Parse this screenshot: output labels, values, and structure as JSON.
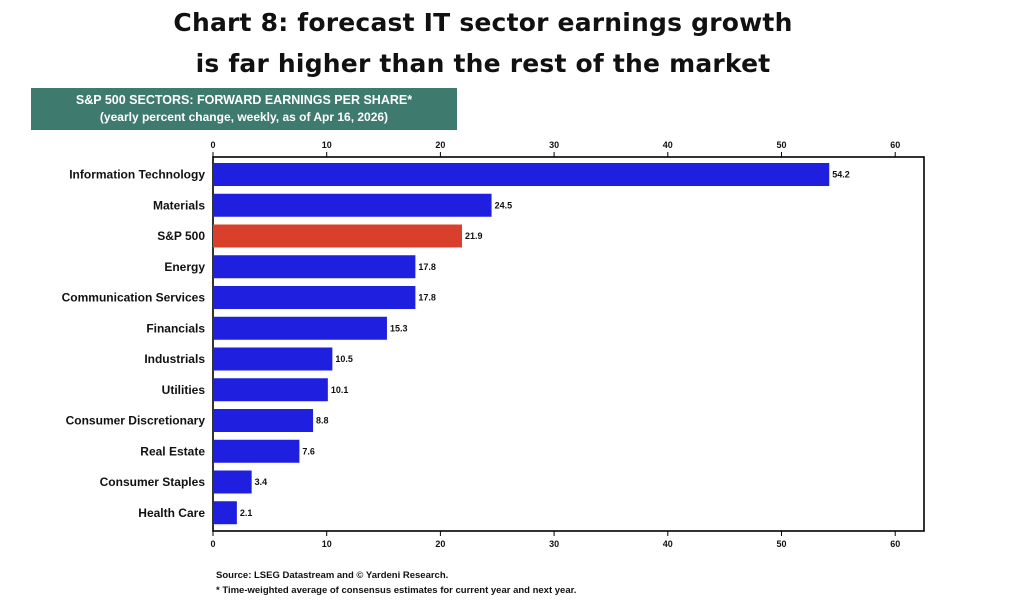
{
  "headline": {
    "line1": "Chart 8: forecast IT sector earnings growth",
    "line2": "is far higher than the rest of the market"
  },
  "header": {
    "title": "S&P 500 SECTORS: FORWARD EARNINGS PER SHARE*",
    "subtitle": "(yearly percent change, weekly, as of Apr 16, 2026)"
  },
  "footer": {
    "source": "Source: LSEG Datastream and © Yardeni Research.",
    "note": "* Time-weighted average of consensus estimates for current year and next year."
  },
  "colors": {
    "bar": "#1f1fe0",
    "highlight": "#d9402c",
    "header_bg": "#3f7a6e"
  },
  "chart_data": {
    "type": "bar",
    "orientation": "horizontal",
    "categories": [
      "Information Technology",
      "Materials",
      "S&P 500",
      "Energy",
      "Communication Services",
      "Financials",
      "Industrials",
      "Utilities",
      "Consumer Discretionary",
      "Real Estate",
      "Consumer Staples",
      "Health Care"
    ],
    "values": [
      54.2,
      24.5,
      21.9,
      17.8,
      17.8,
      15.3,
      10.5,
      10.1,
      8.8,
      7.6,
      3.4,
      2.1
    ],
    "value_labels": [
      "54.2",
      "24.5",
      "21.9",
      "17.8",
      "17.8",
      "15.3",
      "10.5",
      "10.1",
      "8.8",
      "7.6",
      "3.4",
      "2.1"
    ],
    "highlight_category": "S&P 500",
    "xlim": [
      0,
      62
    ],
    "xticks": [
      0,
      10,
      20,
      30,
      40,
      50,
      60
    ],
    "xtick_labels": [
      "0",
      "10",
      "20",
      "30",
      "40",
      "50",
      "60"
    ],
    "grid": false,
    "ticks_on_top_and_bottom": true
  }
}
